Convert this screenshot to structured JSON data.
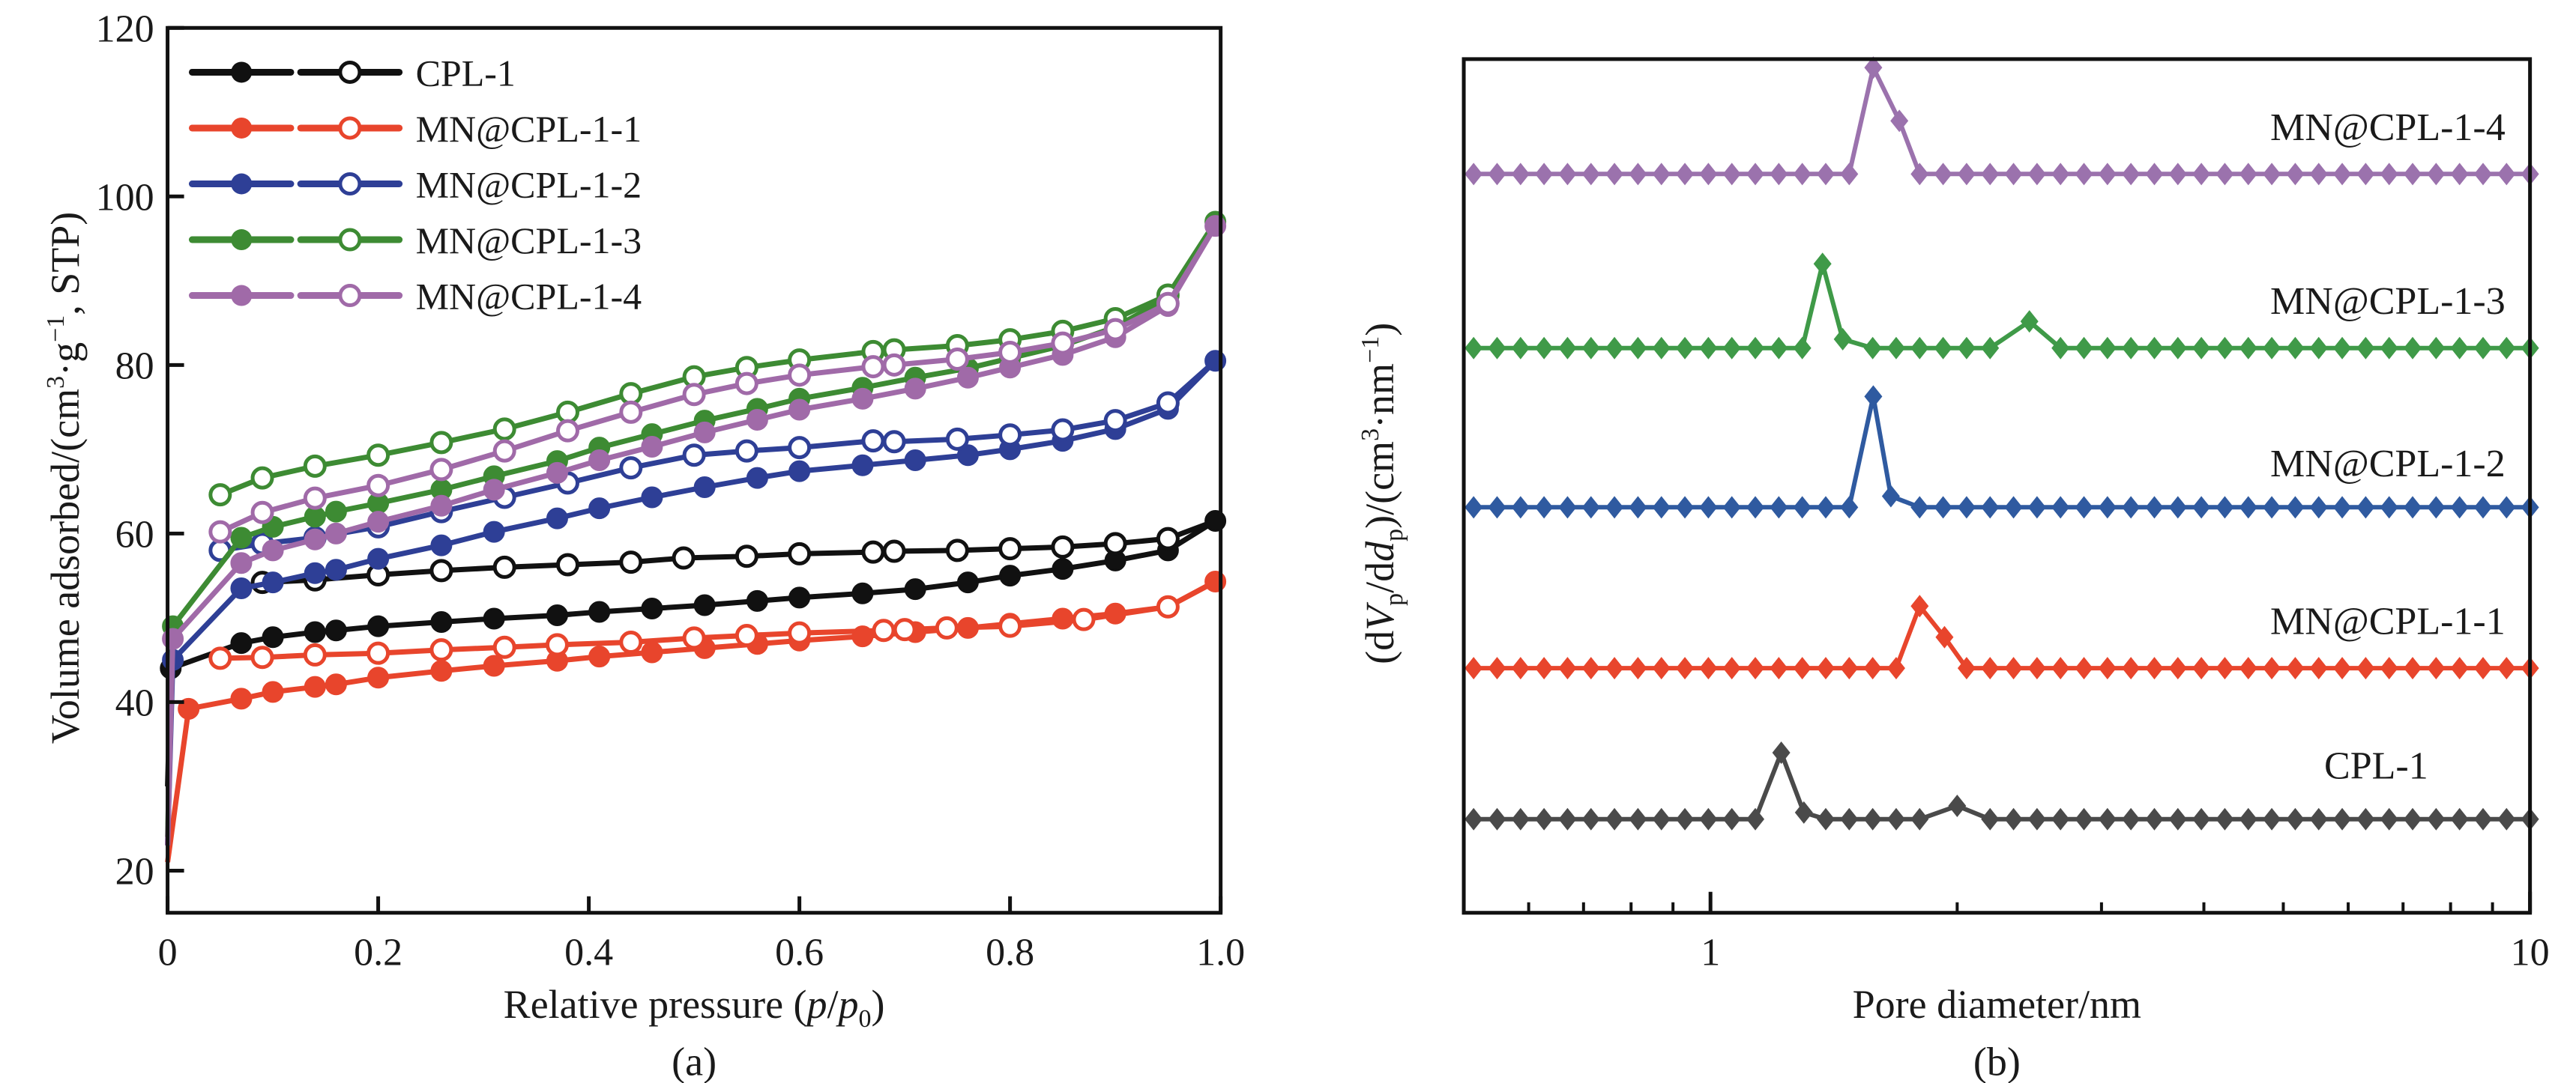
{
  "figure": {
    "panels": [
      "(a)",
      "(b)"
    ]
  },
  "chart_data": [
    {
      "type": "line",
      "panel_label": "(a)",
      "title": "",
      "xlabel": "Relative pressure (p/p0)",
      "xlabel_parts": {
        "prefix": "Relative pressure (",
        "var1": "p",
        "slash": "/",
        "var2": "p",
        "sub": "0",
        "suffix": ")"
      },
      "ylabel": "Volume adsorbed/(cm³·g⁻¹, STP)",
      "ylabel_parts": {
        "prefix": "Volume adsorbed/(cm",
        "sup1": "3",
        "mid": "·g",
        "sup2": "−1",
        "suffix": ", STP)"
      },
      "xlim": [
        0,
        1.0
      ],
      "ylim": [
        15,
        120
      ],
      "xticks": [
        0,
        0.2,
        0.4,
        0.6,
        0.8,
        1.0
      ],
      "xtick_labels": [
        "0",
        "0.2",
        "0.4",
        "0.6",
        "0.8",
        "1.0"
      ],
      "yticks": [
        20,
        40,
        60,
        80,
        100,
        120
      ],
      "ytick_labels": [
        "20",
        "40",
        "60",
        "80",
        "100",
        "120"
      ],
      "grid": false,
      "legend_position": "top-left",
      "legend_note": "filled markers = adsorption, open markers = desorption",
      "series": [
        {
          "name": "CPL-1",
          "color": "#111111",
          "adsorption": [
            [
              0,
              30
            ],
            [
              0.003,
              44
            ],
            [
              0.07,
              47
            ],
            [
              0.1,
              47.7
            ],
            [
              0.14,
              48.3
            ],
            [
              0.16,
              48.5
            ],
            [
              0.2,
              49
            ],
            [
              0.26,
              49.5
            ],
            [
              0.31,
              49.9
            ],
            [
              0.37,
              50.3
            ],
            [
              0.41,
              50.7
            ],
            [
              0.46,
              51.1
            ],
            [
              0.51,
              51.5
            ],
            [
              0.56,
              52
            ],
            [
              0.6,
              52.4
            ],
            [
              0.66,
              52.9
            ],
            [
              0.71,
              53.4
            ],
            [
              0.76,
              54.2
            ],
            [
              0.8,
              55
            ],
            [
              0.85,
              55.8
            ],
            [
              0.9,
              56.8
            ],
            [
              0.95,
              58
            ],
            [
              0.995,
              61.5
            ]
          ],
          "desorption": [
            [
              0.995,
              61.5
            ],
            [
              0.95,
              59.4
            ],
            [
              0.9,
              58.8
            ],
            [
              0.85,
              58.4
            ],
            [
              0.8,
              58.2
            ],
            [
              0.75,
              58
            ],
            [
              0.69,
              57.9
            ],
            [
              0.67,
              57.8
            ],
            [
              0.6,
              57.6
            ],
            [
              0.55,
              57.3
            ],
            [
              0.49,
              57.1
            ],
            [
              0.44,
              56.6
            ],
            [
              0.38,
              56.3
            ],
            [
              0.32,
              56
            ],
            [
              0.26,
              55.6
            ],
            [
              0.2,
              55.1
            ],
            [
              0.14,
              54.5
            ],
            [
              0.09,
              54.2
            ]
          ]
        },
        {
          "name": "MN@CPL-1-1",
          "color": "#e8452c",
          "adsorption": [
            [
              0,
              21
            ],
            [
              0.02,
              39.2
            ],
            [
              0.07,
              40.4
            ],
            [
              0.1,
              41.2
            ],
            [
              0.14,
              41.8
            ],
            [
              0.16,
              42.1
            ],
            [
              0.2,
              42.9
            ],
            [
              0.26,
              43.7
            ],
            [
              0.31,
              44.3
            ],
            [
              0.37,
              44.9
            ],
            [
              0.41,
              45.4
            ],
            [
              0.46,
              45.9
            ],
            [
              0.51,
              46.4
            ],
            [
              0.56,
              46.9
            ],
            [
              0.6,
              47.3
            ],
            [
              0.66,
              47.8
            ],
            [
              0.71,
              48.3
            ],
            [
              0.76,
              48.8
            ],
            [
              0.8,
              49.3
            ],
            [
              0.85,
              49.9
            ],
            [
              0.9,
              50.5
            ],
            [
              0.95,
              51.3
            ],
            [
              0.995,
              54.3
            ]
          ],
          "desorption": [
            [
              0.995,
              54.3
            ],
            [
              0.95,
              51.3
            ],
            [
              0.87,
              49.8
            ],
            [
              0.8,
              49
            ],
            [
              0.74,
              48.8
            ],
            [
              0.7,
              48.6
            ],
            [
              0.68,
              48.5
            ],
            [
              0.6,
              48.2
            ],
            [
              0.55,
              47.9
            ],
            [
              0.5,
              47.6
            ],
            [
              0.44,
              47.1
            ],
            [
              0.37,
              46.8
            ],
            [
              0.32,
              46.5
            ],
            [
              0.26,
              46.2
            ],
            [
              0.2,
              45.8
            ],
            [
              0.14,
              45.6
            ],
            [
              0.09,
              45.3
            ],
            [
              0.05,
              45.2
            ]
          ]
        },
        {
          "name": "MN@CPL-1-2",
          "color": "#2e3f96",
          "adsorption": [
            [
              0,
              23
            ],
            [
              0.005,
              45
            ],
            [
              0.07,
              53.5
            ],
            [
              0.1,
              54.2
            ],
            [
              0.14,
              55.3
            ],
            [
              0.16,
              55.7
            ],
            [
              0.2,
              57
            ],
            [
              0.26,
              58.6
            ],
            [
              0.31,
              60.2
            ],
            [
              0.37,
              61.8
            ],
            [
              0.41,
              63
            ],
            [
              0.46,
              64.3
            ],
            [
              0.51,
              65.5
            ],
            [
              0.56,
              66.6
            ],
            [
              0.6,
              67.4
            ],
            [
              0.66,
              68.1
            ],
            [
              0.71,
              68.7
            ],
            [
              0.76,
              69.3
            ],
            [
              0.8,
              70
            ],
            [
              0.85,
              71
            ],
            [
              0.9,
              72.4
            ],
            [
              0.95,
              74.8
            ],
            [
              0.995,
              80.5
            ]
          ],
          "desorption": [
            [
              0.995,
              80.5
            ],
            [
              0.95,
              75.5
            ],
            [
              0.9,
              73.4
            ],
            [
              0.85,
              72.3
            ],
            [
              0.8,
              71.7
            ],
            [
              0.75,
              71.2
            ],
            [
              0.69,
              70.9
            ],
            [
              0.67,
              71
            ],
            [
              0.6,
              70.2
            ],
            [
              0.55,
              69.8
            ],
            [
              0.5,
              69.3
            ],
            [
              0.44,
              67.8
            ],
            [
              0.38,
              66
            ],
            [
              0.32,
              64.3
            ],
            [
              0.26,
              62.6
            ],
            [
              0.2,
              60.8
            ],
            [
              0.14,
              59.5
            ],
            [
              0.09,
              58.8
            ],
            [
              0.05,
              58
            ]
          ]
        },
        {
          "name": "MN@CPL-1-3",
          "color": "#3d8b33",
          "adsorption": [
            [
              0,
              24
            ],
            [
              0.005,
              49
            ],
            [
              0.07,
              59.5
            ],
            [
              0.1,
              60.8
            ],
            [
              0.14,
              62
            ],
            [
              0.16,
              62.6
            ],
            [
              0.2,
              63.6
            ],
            [
              0.26,
              65.2
            ],
            [
              0.31,
              66.8
            ],
            [
              0.37,
              68.6
            ],
            [
              0.41,
              70.2
            ],
            [
              0.46,
              71.8
            ],
            [
              0.51,
              73.4
            ],
            [
              0.56,
              74.8
            ],
            [
              0.6,
              76
            ],
            [
              0.66,
              77.3
            ],
            [
              0.71,
              78.5
            ],
            [
              0.76,
              79.6
            ],
            [
              0.8,
              80.8
            ],
            [
              0.85,
              82.3
            ],
            [
              0.9,
              84.5
            ],
            [
              0.95,
              88
            ],
            [
              0.995,
              97
            ]
          ],
          "desorption": [
            [
              0.995,
              97
            ],
            [
              0.95,
              88.3
            ],
            [
              0.9,
              85.5
            ],
            [
              0.85,
              84
            ],
            [
              0.8,
              83
            ],
            [
              0.75,
              82.3
            ],
            [
              0.69,
              81.8
            ],
            [
              0.67,
              81.6
            ],
            [
              0.6,
              80.6
            ],
            [
              0.55,
              79.7
            ],
            [
              0.5,
              78.6
            ],
            [
              0.44,
              76.6
            ],
            [
              0.38,
              74.4
            ],
            [
              0.32,
              72.4
            ],
            [
              0.26,
              70.8
            ],
            [
              0.2,
              69.3
            ],
            [
              0.14,
              68
            ],
            [
              0.09,
              66.6
            ],
            [
              0.05,
              64.6
            ]
          ]
        },
        {
          "name": "MN@CPL-1-4",
          "color": "#a06aa8",
          "adsorption": [
            [
              0,
              23
            ],
            [
              0.005,
              47.5
            ],
            [
              0.07,
              56.5
            ],
            [
              0.1,
              58
            ],
            [
              0.14,
              59.3
            ],
            [
              0.16,
              60
            ],
            [
              0.2,
              61.4
            ],
            [
              0.26,
              63.3
            ],
            [
              0.31,
              65.2
            ],
            [
              0.37,
              67.2
            ],
            [
              0.41,
              68.7
            ],
            [
              0.46,
              70.3
            ],
            [
              0.51,
              72
            ],
            [
              0.56,
              73.5
            ],
            [
              0.6,
              74.7
            ],
            [
              0.66,
              76
            ],
            [
              0.71,
              77.2
            ],
            [
              0.76,
              78.5
            ],
            [
              0.8,
              79.7
            ],
            [
              0.85,
              81.2
            ],
            [
              0.9,
              83.3
            ],
            [
              0.95,
              87
            ],
            [
              0.995,
              96.5
            ]
          ],
          "desorption": [
            [
              0.995,
              96.5
            ],
            [
              0.95,
              87.3
            ],
            [
              0.9,
              84.2
            ],
            [
              0.85,
              82.6
            ],
            [
              0.8,
              81.5
            ],
            [
              0.75,
              80.7
            ],
            [
              0.69,
              80
            ],
            [
              0.67,
              79.8
            ],
            [
              0.6,
              78.8
            ],
            [
              0.55,
              77.8
            ],
            [
              0.5,
              76.5
            ],
            [
              0.44,
              74.4
            ],
            [
              0.38,
              72.2
            ],
            [
              0.32,
              69.8
            ],
            [
              0.26,
              67.6
            ],
            [
              0.2,
              65.7
            ],
            [
              0.14,
              64.2
            ],
            [
              0.09,
              62.5
            ],
            [
              0.05,
              60.2
            ]
          ]
        }
      ]
    },
    {
      "type": "line",
      "panel_label": "(b)",
      "title": "",
      "xlabel": "Pore diameter/nm",
      "ylabel": "(dVp/ddp)/(cm³·nm⁻¹)",
      "ylabel_parts": {
        "p1": "(d",
        "v": "V",
        "sub1": "p",
        "p2": "/d",
        "d": "d",
        "sub2": "p",
        "p3": ")/(cm",
        "sup1": "3",
        "p4": "·nm",
        "sup2": "−1",
        "p5": ")"
      },
      "xscale": "log",
      "xlim": [
        0.5,
        10
      ],
      "xticks_major": [
        1,
        10
      ],
      "xtick_labels": [
        "1",
        "10"
      ],
      "xticks_minor": [
        0.6,
        0.7,
        0.8,
        0.9,
        2,
        3,
        4,
        5,
        6,
        7,
        8,
        9
      ],
      "yticks": [],
      "y_units": "arbitrary (curves vertically offset)",
      "grid": false,
      "legend_position": "labels above each curve, right side",
      "series": [
        {
          "name": "CPL-1",
          "color": "#4a4a4a",
          "offset": 0,
          "peaks": [
            {
              "x": 1.22,
              "height": 3.0
            },
            {
              "x": 2.0,
              "height": 0.6
            }
          ],
          "shoulders": [
            {
              "x": 1.3,
              "height": 0.3
            }
          ]
        },
        {
          "name": "MN@CPL-1-1",
          "color": "#e8452c",
          "offset": 4,
          "peaks": [
            {
              "x": 1.8,
              "height": 2.8
            }
          ],
          "shoulders": [
            {
              "x": 1.93,
              "height": 1.4
            }
          ]
        },
        {
          "name": "MN@CPL-1-2",
          "color": "#2f5aa0",
          "offset": 8,
          "peaks": [
            {
              "x": 1.58,
              "height": 5.0
            }
          ],
          "shoulders": [
            {
              "x": 1.66,
              "height": 0.5
            }
          ]
        },
        {
          "name": "MN@CPL-1-3",
          "color": "#3f9a48",
          "offset": 12,
          "peaks": [
            {
              "x": 1.37,
              "height": 3.8
            },
            {
              "x": 2.45,
              "height": 1.2
            }
          ],
          "shoulders": [
            {
              "x": 1.45,
              "height": 0.4
            }
          ]
        },
        {
          "name": "MN@CPL-1-4",
          "color": "#9b72ad",
          "offset": 16,
          "peaks": [
            {
              "x": 1.58,
              "height": 4.8
            }
          ],
          "shoulders": [
            {
              "x": 1.7,
              "height": 2.4
            }
          ]
        }
      ]
    }
  ]
}
